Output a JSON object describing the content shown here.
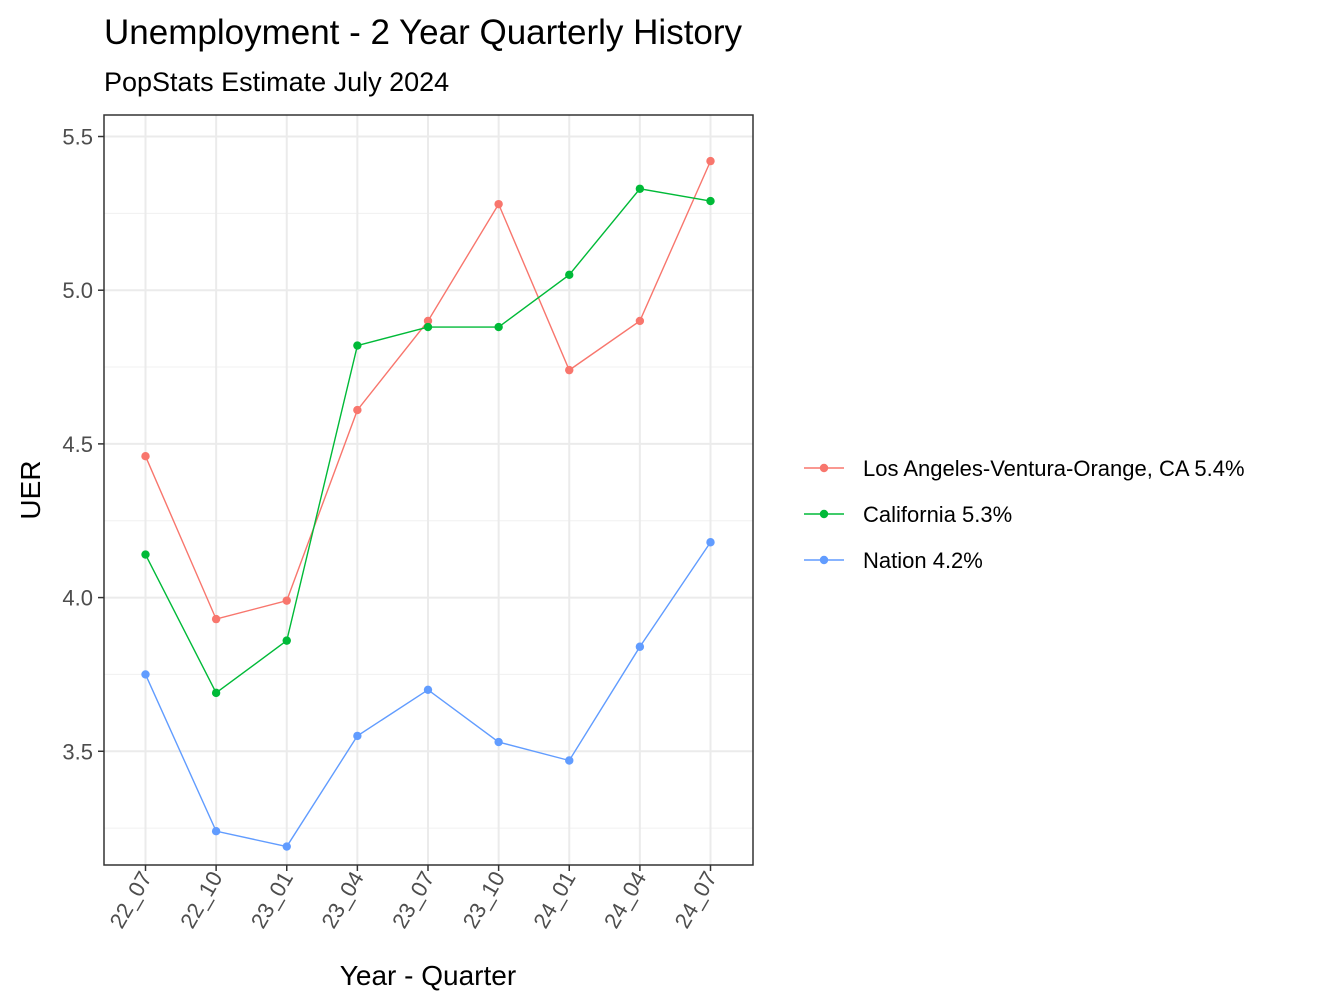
{
  "chart_data": {
    "type": "line",
    "title": "Unemployment - 2 Year Quarterly History",
    "subtitle": "PopStats Estimate July 2024",
    "xlabel": "Year - Quarter",
    "ylabel": "UER",
    "categories": [
      "22_07",
      "22_10",
      "23_01",
      "23_04",
      "23_07",
      "23_10",
      "24_01",
      "24_04",
      "24_07"
    ],
    "ylim": [
      3.13,
      5.57
    ],
    "yticks": [
      3.5,
      4.0,
      4.5,
      5.0,
      5.5
    ],
    "ytick_labels": [
      "3.5",
      "4.0",
      "4.5",
      "5.0",
      "5.5"
    ],
    "grid": true,
    "legend_position": "right",
    "series": [
      {
        "name": "Los Angeles-Ventura-Orange, CA 5.4%",
        "color": "#F8766D",
        "values": [
          4.46,
          3.93,
          3.99,
          4.61,
          4.9,
          5.28,
          4.74,
          4.9,
          5.42
        ]
      },
      {
        "name": "California 5.3%",
        "color": "#00BA38",
        "values": [
          4.14,
          3.69,
          3.86,
          4.82,
          4.88,
          4.88,
          5.05,
          5.33,
          5.29
        ]
      },
      {
        "name": "Nation 4.2%",
        "color": "#619CFF",
        "values": [
          3.75,
          3.24,
          3.19,
          3.55,
          3.7,
          3.53,
          3.47,
          3.84,
          4.18
        ]
      }
    ]
  }
}
